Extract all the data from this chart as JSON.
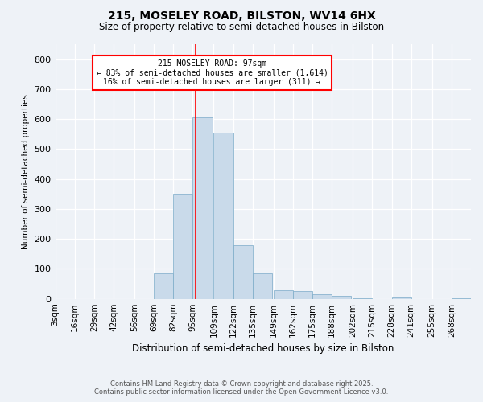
{
  "title": "215, MOSELEY ROAD, BILSTON, WV14 6HX",
  "subtitle": "Size of property relative to semi-detached houses in Bilston",
  "xlabel": "Distribution of semi-detached houses by size in Bilston",
  "ylabel": "Number of semi-detached properties",
  "annotation_title": "215 MOSELEY ROAD: 97sqm",
  "annotation_line1": "← 83% of semi-detached houses are smaller (1,614)",
  "annotation_line2": "16% of semi-detached houses are larger (311) →",
  "footer_line1": "Contains HM Land Registry data © Crown copyright and database right 2025.",
  "footer_line2": "Contains public sector information licensed under the Open Government Licence v3.0.",
  "property_size": 97,
  "bar_color": "#c9daea",
  "bar_edge_color": "#7aaac8",
  "vline_color": "red",
  "annotation_box_color": "white",
  "annotation_box_edge": "red",
  "background_color": "#eef2f7",
  "bins": [
    3,
    16,
    29,
    42,
    56,
    69,
    82,
    95,
    109,
    122,
    135,
    149,
    162,
    175,
    188,
    202,
    215,
    228,
    241,
    255,
    268
  ],
  "bin_labels": [
    "3sqm",
    "16sqm",
    "29sqm",
    "42sqm",
    "56sqm",
    "69sqm",
    "82sqm",
    "95sqm",
    "109sqm",
    "122sqm",
    "135sqm",
    "149sqm",
    "162sqm",
    "175sqm",
    "188sqm",
    "202sqm",
    "215sqm",
    "228sqm",
    "241sqm",
    "255sqm",
    "268sqm"
  ],
  "counts": [
    0,
    0,
    0,
    0,
    0,
    85,
    350,
    605,
    555,
    180,
    85,
    30,
    25,
    15,
    10,
    2,
    0,
    5,
    0,
    0,
    2
  ],
  "ylim": [
    0,
    850
  ],
  "yticks": [
    0,
    100,
    200,
    300,
    400,
    500,
    600,
    700,
    800
  ]
}
